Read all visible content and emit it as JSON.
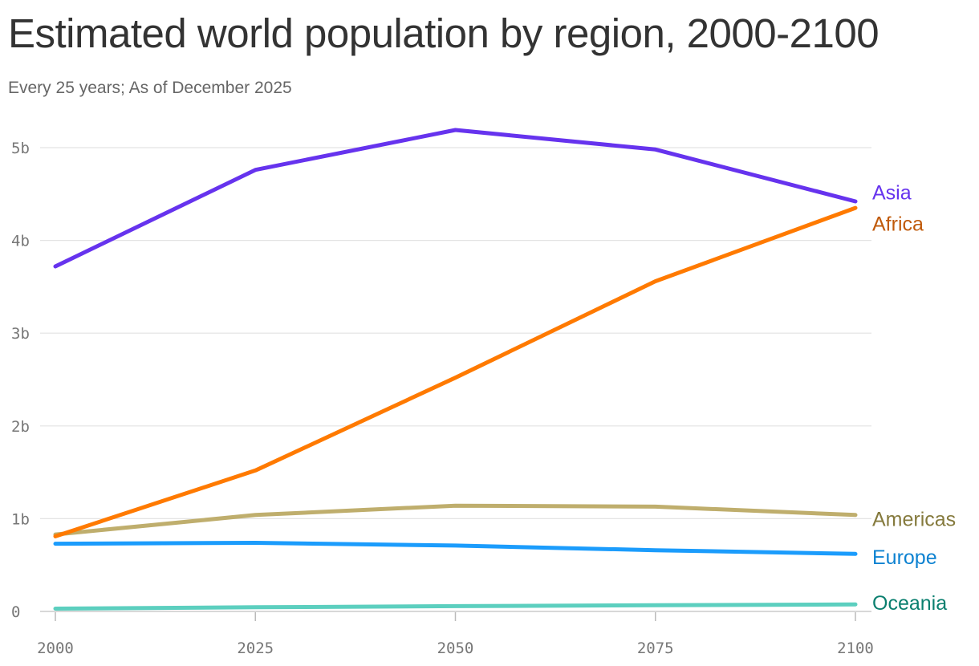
{
  "header": {
    "title": "Estimated world population by region, 2000-2100",
    "subtitle": "Every 25 years; As of December 2025"
  },
  "chart_data": {
    "type": "line",
    "title": "Estimated world population by region, 2000-2100",
    "subtitle": "Every 25 years; As of December 2025",
    "xlabel": "",
    "ylabel": "",
    "x": [
      2000,
      2025,
      2050,
      2075,
      2100
    ],
    "x_tick_labels": [
      "2000",
      "2025",
      "2050",
      "2075",
      "2100"
    ],
    "y_ticks": [
      0,
      1,
      2,
      3,
      4,
      5
    ],
    "y_tick_labels": [
      "0",
      "1b",
      "2b",
      "3b",
      "4b",
      "5b"
    ],
    "ylim": [
      0,
      5.2
    ],
    "y_unit": "billions",
    "grid": "horizontal",
    "legend": "direct labels at right end of lines",
    "series": [
      {
        "name": "Asia",
        "values": [
          3.72,
          4.76,
          5.19,
          4.98,
          4.42
        ],
        "color": "#6633ee",
        "label_color": "#6633ee"
      },
      {
        "name": "Africa",
        "values": [
          0.81,
          1.52,
          2.52,
          3.56,
          4.35
        ],
        "color": "#ff7a00",
        "label_color": "#c05a0a"
      },
      {
        "name": "Americas",
        "values": [
          0.83,
          1.04,
          1.14,
          1.13,
          1.04
        ],
        "color": "#bfae6d",
        "label_color": "#857a3d"
      },
      {
        "name": "Europe",
        "values": [
          0.73,
          0.74,
          0.71,
          0.66,
          0.62
        ],
        "color": "#1b9cfc",
        "label_color": "#0d82d1"
      },
      {
        "name": "Oceania",
        "values": [
          0.03,
          0.045,
          0.057,
          0.067,
          0.075
        ],
        "color": "#5ccfbf",
        "label_color": "#0a7f6f"
      }
    ]
  }
}
